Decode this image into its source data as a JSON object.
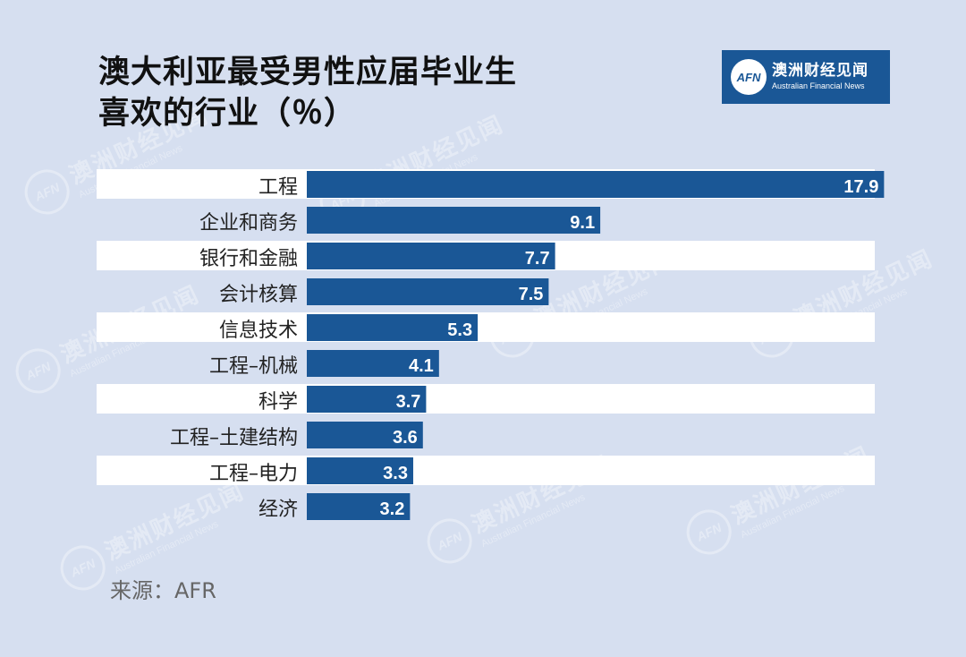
{
  "title_line1": "澳大利亚最受男性应届毕业生",
  "title_line2": "喜欢的行业（％）",
  "logo": {
    "abbr": "AFN",
    "cn": "澳洲财经见闻",
    "en": "Australian Financial News"
  },
  "source": "来源：AFR",
  "colors": {
    "bar": "#1a5796",
    "stripe": "#ffffff",
    "background": "#d6dff0"
  },
  "chart_data": {
    "type": "bar",
    "orientation": "horizontal",
    "categories": [
      "工程",
      "企业和商务",
      "银行和金融",
      "会计核算",
      "信息技术",
      "工程–机械",
      "科学",
      "工程–土建结构",
      "工程–电力",
      "经济"
    ],
    "values": [
      17.9,
      9.1,
      7.7,
      7.5,
      5.3,
      4.1,
      3.7,
      3.6,
      3.3,
      3.2
    ],
    "value_labels": [
      "17.9",
      "9.1",
      "7.7",
      "7.5",
      "5.3",
      "4.1",
      "3.7",
      "3.6",
      "3.3",
      "3.2"
    ],
    "xlim": [
      0,
      18.5
    ],
    "grid": false,
    "legend": false
  }
}
